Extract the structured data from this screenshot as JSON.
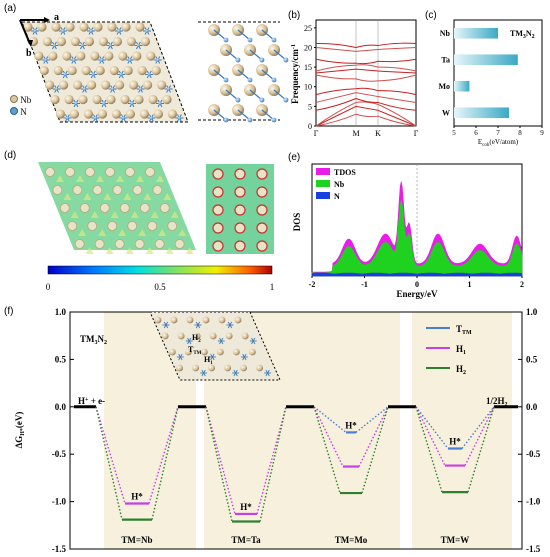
{
  "panel_labels": {
    "a": "(a)",
    "b": "(b)",
    "c": "(c)",
    "d": "(d)",
    "e": "(e)",
    "f": "(f)"
  },
  "panel_a": {
    "axis_a": "a",
    "axis_b": "b",
    "legend": [
      {
        "label": "Nb",
        "color": "#d9c9a3"
      },
      {
        "label": "N",
        "color": "#5a9fd4"
      }
    ]
  },
  "panel_b": {
    "ylabel": "Frequency/cm",
    "ylabel_sup": "-1",
    "yticks": [
      "0",
      "5",
      "10",
      "15",
      "20",
      "25"
    ],
    "xticks": [
      "Γ",
      "M",
      "K",
      "Γ"
    ]
  },
  "panel_c": {
    "title": "TM",
    "title_sub1": "3",
    "title_mid": "N",
    "title_sub2": "2",
    "xlabel": "E",
    "xlabel_sub": "coh",
    "xlabel_tail": "(eV/atom)",
    "xticks": [
      "5",
      "6",
      "7",
      "8",
      "9"
    ]
  },
  "panel_d": {
    "colorbar_ticks": [
      "0",
      "0.5",
      "1"
    ]
  },
  "panel_e": {
    "ylabel": "DOS",
    "xlabel": "Energy/eV",
    "xticks": [
      "-2",
      "-1",
      "0",
      "1",
      "2"
    ],
    "legend": [
      {
        "label": "TDOS",
        "color": "#e81ee8"
      },
      {
        "label": "Nb",
        "color": "#1fd21f"
      },
      {
        "label": "N",
        "color": "#1a3fe0"
      }
    ]
  },
  "panel_f": {
    "ylabel_left": "ΔG",
    "ylabel_sub": "H*",
    "ylabel_tail": "(eV)",
    "yticks": [
      "1.0",
      "0.5",
      "0.0",
      "-0.5",
      "-1.0",
      "-1.5"
    ],
    "compound": "TM",
    "compound_sub1": "3",
    "compound_mid": "N",
    "compound_sub2": "2",
    "start_label": "H",
    "start_sup": "+",
    "start_tail": " + e-",
    "end_label": "1/2H",
    "end_sub": "2",
    "hstar": "H*",
    "site_h2": "H",
    "site_h2_sub": "2",
    "site_t": "T",
    "site_t_sub": "TM",
    "site_h1": "H",
    "site_h1_sub": "1",
    "legend": [
      {
        "label": "T",
        "sub": "TM",
        "color": "#4a7fd0"
      },
      {
        "label": "H",
        "sub": "1",
        "color": "#c83ee8"
      },
      {
        "label": "H",
        "sub": "2",
        "color": "#2f7f2f"
      }
    ],
    "groups": [
      "TM=Nb",
      "TM=Ta",
      "TM=Mo",
      "TM=W"
    ]
  },
  "chart_data": [
    {
      "type": "bar",
      "orientation": "horizontal",
      "categories": [
        "Nb",
        "Ta",
        "Mo",
        "W"
      ],
      "values": [
        7.0,
        7.9,
        5.7,
        7.5
      ],
      "title": "TM3N2",
      "xlabel": "Ecoh(eV/atom)",
      "xlim": [
        5,
        9
      ],
      "color": "#3aa9c4"
    },
    {
      "type": "line",
      "title": "",
      "xlabel": "Energy/eV",
      "ylabel": "DOS",
      "xlim": [
        -2,
        2
      ],
      "series": [
        {
          "name": "TDOS"
        },
        {
          "name": "Nb"
        },
        {
          "name": "N"
        }
      ]
    },
    {
      "type": "line",
      "title": "",
      "ylabel": "ΔGH*(eV)",
      "ylim": [
        -1.5,
        1.0
      ],
      "categories": [
        "TM=Nb",
        "TM=Ta",
        "TM=Mo",
        "TM=W"
      ],
      "series": [
        {
          "name": "TTM",
          "values": [
            null,
            null,
            -0.27,
            -0.44
          ]
        },
        {
          "name": "H1",
          "values": [
            -1.02,
            -1.13,
            -0.63,
            -0.62
          ]
        },
        {
          "name": "H2",
          "values": [
            -1.19,
            -1.21,
            -0.91,
            -0.9
          ]
        }
      ]
    }
  ]
}
